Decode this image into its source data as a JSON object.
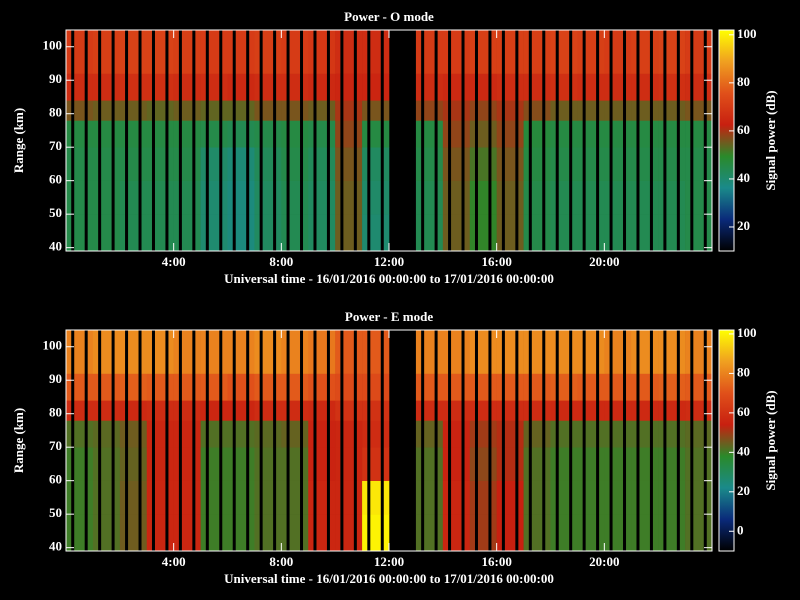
{
  "chart_data": [
    {
      "type": "heatmap",
      "title": "Power - O mode",
      "xlabel": "Universal time - 16/01/2016 00:00:00 to 17/01/2016 00:00:00",
      "ylabel": "Range (km)",
      "colorbar_label": "Signal power (dB)",
      "xlim": [
        0,
        24
      ],
      "x_bins": [
        0,
        1,
        2,
        3,
        4,
        5,
        6,
        7,
        8,
        9,
        10,
        11,
        12,
        13,
        14,
        15,
        16,
        17,
        18,
        19,
        20,
        21,
        22,
        23,
        24
      ],
      "xticks": [
        {
          "value": 4,
          "label": "4:00"
        },
        {
          "value": 8,
          "label": "8:00"
        },
        {
          "value": 12,
          "label": "12:00"
        },
        {
          "value": 16,
          "label": "16:00"
        },
        {
          "value": 20,
          "label": "20:00"
        }
      ],
      "ylim": [
        39,
        105
      ],
      "yticks": [
        40,
        50,
        60,
        70,
        80,
        90,
        100
      ],
      "y_bins": [
        39,
        50,
        60,
        70,
        78,
        84,
        92,
        105
      ],
      "zlim": [
        10,
        102
      ],
      "zticks": [
        20,
        40,
        60,
        80,
        100
      ],
      "colormap": [
        "#000000",
        "#0a2a7a",
        "#1a8a8a",
        "#2a8a2a",
        "#c82010",
        "#e0501a",
        "#f0a020",
        "#ffff00"
      ],
      "z": [
        [
          45,
          45,
          44,
          44,
          44,
          40,
          38,
          42,
          44,
          42,
          55,
          40,
          null,
          44,
          55,
          50,
          55,
          45,
          44,
          44,
          44,
          44,
          44,
          45
        ],
        [
          45,
          45,
          44,
          44,
          44,
          40,
          38,
          42,
          44,
          42,
          55,
          41,
          null,
          44,
          55,
          50,
          55,
          45,
          44,
          44,
          44,
          44,
          44,
          45
        ],
        [
          45,
          45,
          45,
          45,
          45,
          41,
          39,
          43,
          45,
          43,
          56,
          42,
          null,
          45,
          56,
          52,
          56,
          46,
          45,
          45,
          45,
          45,
          45,
          45
        ],
        [
          46,
          46,
          46,
          46,
          46,
          45,
          44,
          45,
          46,
          45,
          58,
          46,
          null,
          46,
          58,
          55,
          58,
          47,
          46,
          46,
          46,
          46,
          46,
          46
        ],
        [
          56,
          55,
          55,
          54,
          55,
          54,
          54,
          56,
          56,
          55,
          60,
          56,
          null,
          58,
          60,
          58,
          60,
          57,
          55,
          55,
          55,
          55,
          55,
          56
        ],
        [
          66,
          66,
          67,
          67,
          66,
          66,
          65,
          66,
          66,
          65,
          64,
          64,
          null,
          66,
          65,
          65,
          66,
          66,
          67,
          66,
          66,
          66,
          67,
          66
        ],
        [
          70,
          71,
          72,
          72,
          71,
          70,
          70,
          71,
          70,
          69,
          66,
          66,
          null,
          70,
          70,
          71,
          71,
          71,
          72,
          71,
          70,
          71,
          72,
          70
        ]
      ]
    },
    {
      "type": "heatmap",
      "title": "Power - E mode",
      "xlabel": "Universal time - 16/01/2016 00:00:00 to 17/01/2016 00:00:00",
      "ylabel": "Range (km)",
      "colorbar_label": "Signal power (dB)",
      "xlim": [
        0,
        24
      ],
      "x_bins": [
        0,
        1,
        2,
        3,
        4,
        5,
        6,
        7,
        8,
        9,
        10,
        11,
        12,
        13,
        14,
        15,
        16,
        17,
        18,
        19,
        20,
        21,
        22,
        23,
        24
      ],
      "xticks": [
        {
          "value": 4,
          "label": "4:00"
        },
        {
          "value": 8,
          "label": "8:00"
        },
        {
          "value": 12,
          "label": "12:00"
        },
        {
          "value": 16,
          "label": "16:00"
        },
        {
          "value": 20,
          "label": "20:00"
        }
      ],
      "ylim": [
        39,
        105
      ],
      "yticks": [
        40,
        50,
        60,
        70,
        80,
        90,
        100
      ],
      "y_bins": [
        39,
        50,
        60,
        70,
        78,
        84,
        92,
        105
      ],
      "zlim": [
        -10,
        102
      ],
      "zticks": [
        0,
        20,
        40,
        60,
        80,
        100
      ],
      "colormap": [
        "#000000",
        "#0a2a7a",
        "#1a8a8a",
        "#2a8a2a",
        "#c82010",
        "#e0501a",
        "#f0a020",
        "#ffff00"
      ],
      "z": [
        [
          40,
          42,
          45,
          56,
          56,
          40,
          40,
          42,
          42,
          56,
          56,
          100,
          null,
          42,
          56,
          50,
          54,
          42,
          40,
          40,
          40,
          40,
          40,
          42
        ],
        [
          40,
          42,
          45,
          56,
          56,
          40,
          40,
          42,
          42,
          56,
          56,
          98,
          null,
          42,
          56,
          50,
          54,
          42,
          40,
          40,
          40,
          40,
          40,
          42
        ],
        [
          40,
          42,
          44,
          56,
          56,
          40,
          40,
          42,
          42,
          55,
          56,
          60,
          null,
          42,
          55,
          48,
          52,
          42,
          40,
          40,
          40,
          40,
          40,
          42
        ],
        [
          42,
          43,
          45,
          56,
          56,
          42,
          42,
          43,
          44,
          55,
          56,
          58,
          null,
          44,
          55,
          50,
          52,
          44,
          42,
          42,
          42,
          42,
          42,
          43
        ],
        [
          58,
          58,
          57,
          58,
          58,
          56,
          56,
          58,
          58,
          57,
          60,
          60,
          null,
          58,
          58,
          58,
          58,
          58,
          57,
          57,
          57,
          57,
          57,
          58
        ],
        [
          72,
          72,
          73,
          72,
          72,
          72,
          70,
          72,
          72,
          70,
          68,
          68,
          null,
          72,
          72,
          72,
          72,
          72,
          73,
          72,
          72,
          72,
          73,
          72
        ],
        [
          80,
          82,
          82,
          82,
          80,
          80,
          80,
          82,
          80,
          78,
          72,
          72,
          null,
          80,
          80,
          82,
          82,
          82,
          82,
          82,
          80,
          82,
          82,
          80
        ]
      ]
    }
  ]
}
